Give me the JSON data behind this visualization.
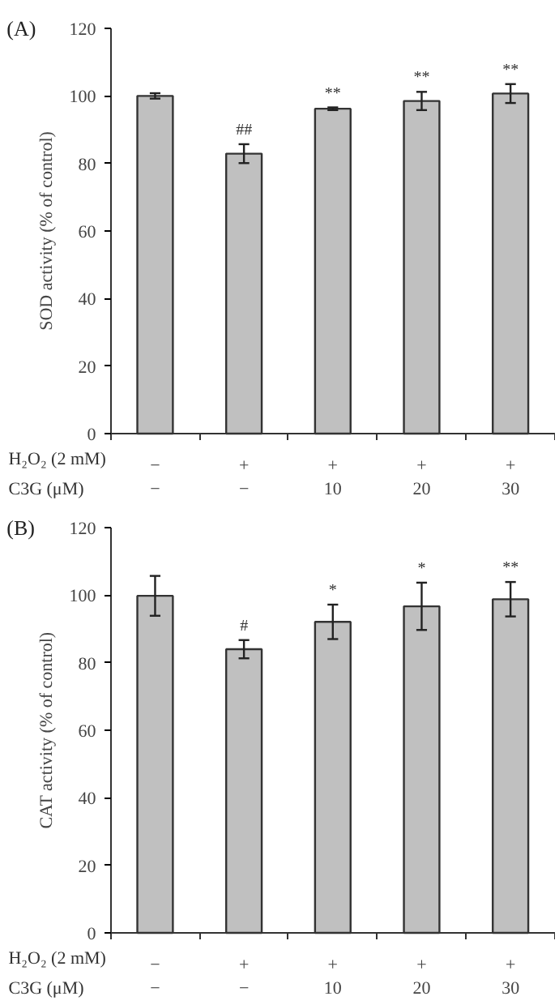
{
  "chart_data": [
    {
      "type": "bar",
      "title": "(A)",
      "ylabel": "SOD activity (% of control)",
      "xlabel": "H₂O₂ (2 mM)\nC3G (μM)",
      "categories": [
        "−\n−",
        "+\n−",
        "+\n10",
        "+\n20",
        "+\n30"
      ],
      "values": [
        100,
        82.9,
        96.2,
        98.5,
        100.7
      ],
      "color": "#c0c0c0",
      "errors": [
        0.8,
        2.8,
        0.4,
        2.7,
        2.8
      ],
      "ylim": [
        0,
        120
      ],
      "yticks": [
        0,
        20,
        40,
        60,
        80,
        100,
        120
      ],
      "grid": false,
      "value_labels": [
        null,
        "##",
        "**",
        "**",
        "**"
      ]
    },
    {
      "type": "bar",
      "title": "(B)",
      "ylabel": "CAT activity (% of control)",
      "xlabel": "H₂O₂ (2 mM)\nC3G (μM)",
      "categories": [
        "−\n−",
        "+\n−",
        "+\n10",
        "+\n20",
        "+\n30"
      ],
      "values": [
        99.8,
        84.0,
        92.1,
        96.7,
        98.8
      ],
      "color": "#c0c0c0",
      "errors": [
        5.9,
        2.7,
        5.1,
        7.0,
        5.1
      ],
      "ylim": [
        0,
        120
      ],
      "yticks": [
        0,
        20,
        40,
        60,
        80,
        100,
        120
      ],
      "grid": false,
      "value_labels": [
        null,
        "#",
        "*",
        "*",
        "**"
      ]
    }
  ]
}
